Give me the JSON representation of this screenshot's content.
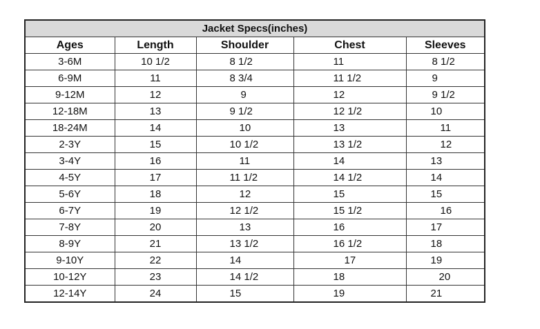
{
  "title": "Jacket Specs(inches)",
  "columns": [
    "Ages",
    "Length",
    "Shoulder",
    "Chest",
    "Sleeves"
  ],
  "rows": [
    [
      "3-6M",
      "10 1/2",
      "8 1/2",
      "11",
      "8 1/2"
    ],
    [
      "6-9M",
      "11",
      "8 3/4",
      "11 1/2",
      "9"
    ],
    [
      "9-12M",
      "12",
      "9",
      "12",
      "9 1/2"
    ],
    [
      "12-18M",
      "13",
      "9 1/2",
      "12 1/2",
      "10"
    ],
    [
      "18-24M",
      "14",
      "10",
      "13",
      "11"
    ],
    [
      "2-3Y",
      "15",
      "10 1/2",
      "13 1/2",
      "12"
    ],
    [
      "3-4Y",
      "16",
      "11",
      "14",
      "13"
    ],
    [
      "4-5Y",
      "17",
      "11 1/2",
      "14 1/2",
      "14"
    ],
    [
      "5-6Y",
      "18",
      "12",
      "15",
      "15"
    ],
    [
      "6-7Y",
      "19",
      "12 1/2",
      "15 1/2",
      "16"
    ],
    [
      "7-8Y",
      "20",
      "13",
      "16",
      "17"
    ],
    [
      "8-9Y",
      "21",
      "13 1/2",
      "16 1/2",
      "18"
    ],
    [
      "9-10Y",
      "22",
      "14",
      "17",
      "19"
    ],
    [
      "10-12Y",
      "23",
      "14 1/2",
      "18",
      "20"
    ],
    [
      "12-14Y",
      "24",
      "15",
      "19",
      "21"
    ]
  ]
}
